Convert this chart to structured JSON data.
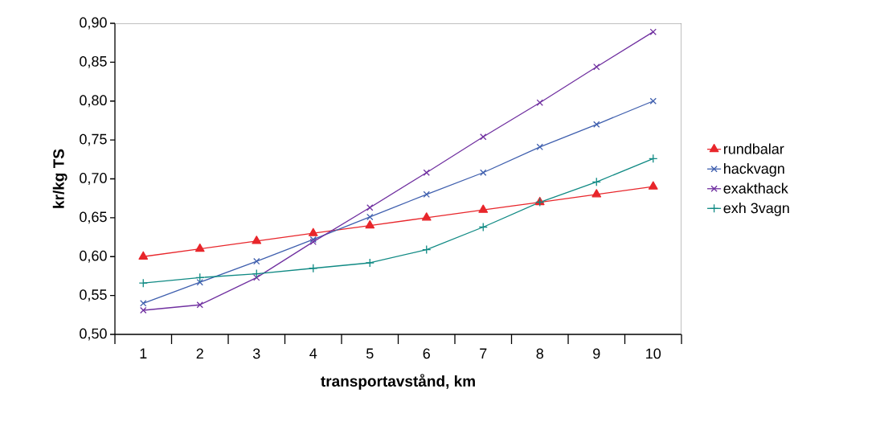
{
  "chart_data": {
    "type": "line",
    "xlabel": "transportavstånd, km",
    "ylabel": "kr/kg TS",
    "categories": [
      "1",
      "2",
      "3",
      "4",
      "5",
      "6",
      "7",
      "8",
      "9",
      "10"
    ],
    "ylim": [
      0.5,
      0.9
    ],
    "yticks": [
      {
        "value": 0.5,
        "label": "0,50"
      },
      {
        "value": 0.55,
        "label": "0,55"
      },
      {
        "value": 0.6,
        "label": "0,60"
      },
      {
        "value": 0.65,
        "label": "0,65"
      },
      {
        "value": 0.7,
        "label": "0,70"
      },
      {
        "value": 0.75,
        "label": "0,75"
      },
      {
        "value": 0.8,
        "label": "0,80"
      },
      {
        "value": 0.85,
        "label": "0,85"
      },
      {
        "value": 0.9,
        "label": "0,90"
      }
    ],
    "legend": "right",
    "series": [
      {
        "name": "rundbalar",
        "color": "#e8262b",
        "marker": "triangle",
        "values": [
          0.6,
          0.61,
          0.62,
          0.63,
          0.64,
          0.65,
          0.66,
          0.67,
          0.68,
          0.69
        ]
      },
      {
        "name": "hackvagn",
        "color": "#3f5fae",
        "marker": "cross",
        "values": [
          0.54,
          0.567,
          0.594,
          0.622,
          0.651,
          0.68,
          0.708,
          0.741,
          0.77,
          0.8
        ]
      },
      {
        "name": "exakthack",
        "color": "#7030a0",
        "marker": "cross",
        "values": [
          0.531,
          0.538,
          0.573,
          0.619,
          0.663,
          0.708,
          0.754,
          0.798,
          0.844,
          0.889
        ]
      },
      {
        "name": "exh 3vagn",
        "color": "#108a84",
        "marker": "plus",
        "values": [
          0.566,
          0.573,
          0.578,
          0.585,
          0.592,
          0.609,
          0.638,
          0.67,
          0.696,
          0.726
        ]
      }
    ]
  }
}
